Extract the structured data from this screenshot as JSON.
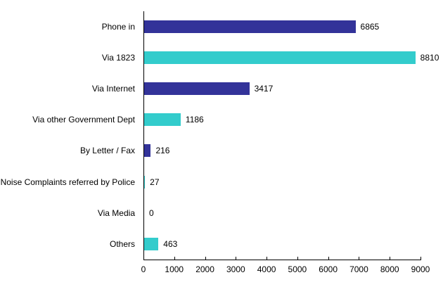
{
  "chart_data": {
    "type": "bar",
    "orientation": "horizontal",
    "title": "",
    "xlabel": "",
    "ylabel": "",
    "xlim": [
      0,
      9000
    ],
    "grid": false,
    "legend": null,
    "categories": [
      "Phone in",
      "Via 1823",
      "Via Internet",
      "Via other Government Dept",
      "By Letter / Fax",
      "Noise Complaints referred by Police",
      "Via Media",
      "Others"
    ],
    "values": [
      6865,
      8810,
      3417,
      1186,
      216,
      27,
      0,
      463
    ],
    "value_labels": [
      "6865",
      "8810",
      "3417",
      "1186",
      "216",
      "27",
      "0",
      "463"
    ],
    "bar_colors": [
      "#333399",
      "#33CCCC",
      "#333399",
      "#33CCCC",
      "#333399",
      "#33CCCC",
      "#333399",
      "#33CCCC"
    ],
    "x_ticks": [
      0,
      1000,
      2000,
      3000,
      4000,
      5000,
      6000,
      7000,
      8000,
      9000
    ],
    "x_tick_labels": [
      "0",
      "1000",
      "2000",
      "3000",
      "4000",
      "5000",
      "6000",
      "7000",
      "8000",
      "9000"
    ]
  },
  "colors": {
    "dark_bar": "#333399",
    "light_bar": "#33CCCC"
  }
}
